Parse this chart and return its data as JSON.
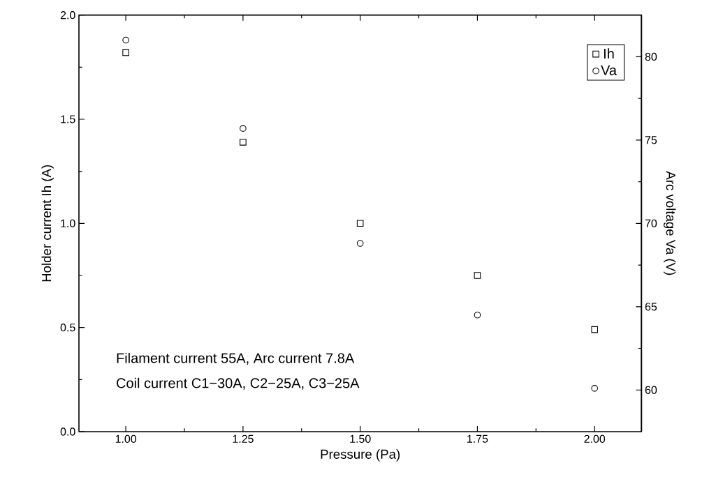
{
  "chart_data": {
    "type": "scatter",
    "xlabel": "Pressure (Pa)",
    "ylabel": "Holder current Ih (A)",
    "y2label": "Arc voltage Va (V)",
    "x": [
      1.0,
      1.25,
      1.5,
      1.75,
      2.0
    ],
    "series": [
      {
        "name": "Ih",
        "color": "#000000",
        "marker": "square",
        "values": [
          1.82,
          1.39,
          1.0,
          0.75,
          0.49
        ]
      },
      {
        "name": "Va",
        "color": "#000000",
        "marker": "circle",
        "axis": "y2",
        "values": [
          81.0,
          75.7,
          68.8,
          64.5,
          60.1
        ]
      }
    ],
    "xlim": [
      0.9,
      2.1
    ],
    "xticks": [
      {
        "value": 1.0,
        "label": "1.00"
      },
      {
        "value": 1.25,
        "label": "1.25"
      },
      {
        "value": 1.5,
        "label": "1.50"
      },
      {
        "value": 1.75,
        "label": "1.75"
      },
      {
        "value": 2.0,
        "label": "2.00"
      }
    ],
    "ylim": [
      0,
      2
    ],
    "yticks": [
      {
        "value": 0,
        "label": "0.0"
      },
      {
        "value": 0.5,
        "label": "0.5"
      },
      {
        "value": 1.0,
        "label": "1.0"
      },
      {
        "value": 1.5,
        "label": "1.5"
      },
      {
        "value": 2.0,
        "label": "2.0"
      }
    ],
    "y2lim": [
      57.5,
      82.5
    ],
    "y2ticks": [
      60,
      65,
      70,
      75,
      80
    ],
    "legend": "top right",
    "grid": false,
    "annotations": [
      "Filament current 55A, Arc current 7.8A",
      "Coil current C1−30A, C2−25A, C3−25A"
    ]
  }
}
